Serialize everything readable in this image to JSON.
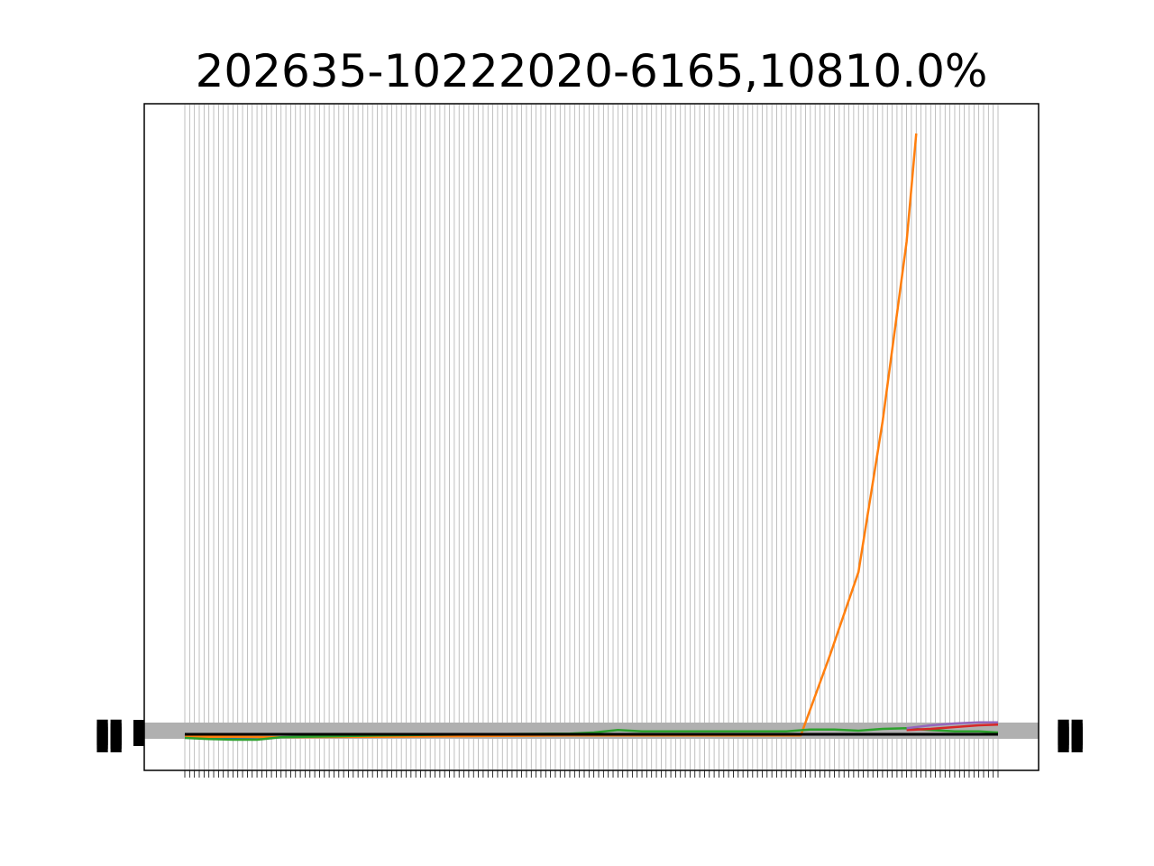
{
  "chart_data": {
    "type": "line",
    "title": "202635-10222020-6165,10810.0%",
    "xlabel": "",
    "ylabel": "",
    "grid": "vertical",
    "tick_count": 170,
    "xlim": [
      0,
      169
    ],
    "ylim": [
      -20,
      1160
    ],
    "series": [
      {
        "color": "#1f77b4",
        "x": [
          0,
          3,
          10,
          20,
          40,
          60,
          80,
          100,
          120,
          140,
          160,
          169
        ],
        "values": [
          0,
          -5,
          -6,
          -5,
          -2,
          -2,
          -1,
          0,
          0,
          0,
          0,
          0
        ]
      },
      {
        "color": "#ff7f0e",
        "x": [
          0,
          10,
          20,
          40,
          60,
          80,
          100,
          120,
          128,
          134,
          140,
          145,
          150,
          152
        ],
        "values": [
          -4,
          -4,
          -5,
          -4,
          -3,
          -2,
          -2,
          -2,
          -2,
          130,
          270,
          520,
          820,
          1000
        ]
      },
      {
        "color": "#2ca02c",
        "x": [
          0,
          5,
          10,
          15,
          20,
          40,
          60,
          80,
          85,
          90,
          95,
          100,
          110,
          120,
          125,
          130,
          135,
          140,
          145,
          150,
          155,
          160,
          165,
          169
        ],
        "values": [
          -6,
          -8,
          -9,
          -9,
          -5,
          -2,
          0,
          1,
          3,
          7,
          5,
          5,
          5,
          5,
          5,
          8,
          8,
          6,
          9,
          10,
          7,
          5,
          5,
          3
        ]
      },
      {
        "color": "#d62728",
        "x": [
          150,
          155,
          160,
          165,
          169
        ],
        "values": [
          7,
          9,
          12,
          15,
          16
        ]
      },
      {
        "color": "#9467bd",
        "x": [
          150,
          155,
          160,
          165,
          169
        ],
        "values": [
          10,
          15,
          18,
          20,
          20
        ]
      },
      {
        "color": "#000000",
        "x": [
          0,
          20,
          40,
          60,
          80,
          100,
          120,
          140,
          160,
          169
        ],
        "values": [
          0,
          0,
          0,
          0,
          0,
          0,
          0,
          0,
          0,
          0
        ]
      }
    ]
  }
}
